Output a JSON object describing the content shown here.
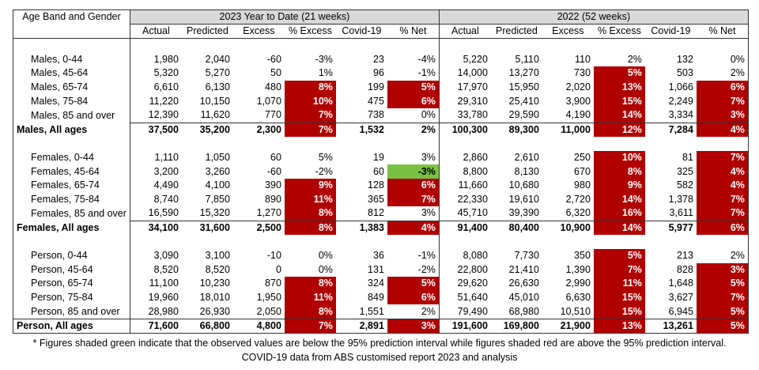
{
  "header": {
    "label_col": "Age Band and Gender",
    "group_2023": "2023 Year to Date (21 weeks)",
    "group_2022": "2022 (52 weeks)",
    "columns": [
      "Actual",
      "Predicted",
      "Excess",
      "% Excess",
      "Covid-19",
      "% Net"
    ]
  },
  "colors": {
    "red": "#b00000",
    "green": "#7ac143"
  },
  "sections": [
    {
      "rows": [
        {
          "label": "Males, 0-44",
          "v23": [
            "1,980",
            "2,040",
            "-60",
            "-3%",
            "23",
            "-4%"
          ],
          "s23": [
            "",
            ""
          ],
          "v22": [
            "5,220",
            "5,110",
            "110",
            "2%",
            "132",
            "0%"
          ],
          "s22": [
            "",
            ""
          ]
        },
        {
          "label": "Males, 45-64",
          "v23": [
            "5,320",
            "5,270",
            "50",
            "1%",
            "96",
            "-1%"
          ],
          "s23": [
            "",
            ""
          ],
          "v22": [
            "14,000",
            "13,270",
            "730",
            "5%",
            "503",
            "2%"
          ],
          "s22": [
            "r",
            ""
          ]
        },
        {
          "label": "Males, 65-74",
          "v23": [
            "6,610",
            "6,130",
            "480",
            "8%",
            "199",
            "5%"
          ],
          "s23": [
            "r",
            "r"
          ],
          "v22": [
            "17,970",
            "15,950",
            "2,020",
            "13%",
            "1,066",
            "6%"
          ],
          "s22": [
            "r",
            "r"
          ]
        },
        {
          "label": "Males, 75-84",
          "v23": [
            "11,220",
            "10,150",
            "1,070",
            "10%",
            "475",
            "6%"
          ],
          "s23": [
            "r",
            "r"
          ],
          "v22": [
            "29,310",
            "25,410",
            "3,900",
            "15%",
            "2,249",
            "7%"
          ],
          "s22": [
            "r",
            "r"
          ]
        },
        {
          "label": "Males, 85 and over",
          "v23": [
            "12,390",
            "11,620",
            "770",
            "7%",
            "738",
            "0%"
          ],
          "s23": [
            "r",
            ""
          ],
          "v22": [
            "33,780",
            "29,590",
            "4,190",
            "14%",
            "3,334",
            "3%"
          ],
          "s22": [
            "r",
            "r"
          ]
        },
        {
          "label": "Males, All ages",
          "total": true,
          "v23": [
            "37,500",
            "35,200",
            "2,300",
            "7%",
            "1,532",
            "2%"
          ],
          "s23": [
            "r",
            ""
          ],
          "v22": [
            "100,300",
            "89,300",
            "11,000",
            "12%",
            "7,284",
            "4%"
          ],
          "s22": [
            "r",
            "r"
          ]
        }
      ]
    },
    {
      "rows": [
        {
          "label": "Females, 0-44",
          "v23": [
            "1,110",
            "1,050",
            "60",
            "5%",
            "19",
            "3%"
          ],
          "s23": [
            "",
            ""
          ],
          "v22": [
            "2,860",
            "2,610",
            "250",
            "10%",
            "81",
            "7%"
          ],
          "s22": [
            "r",
            "r"
          ]
        },
        {
          "label": "Females, 45-64",
          "v23": [
            "3,200",
            "3,260",
            "-60",
            "-2%",
            "60",
            "-3%"
          ],
          "s23": [
            "",
            "g"
          ],
          "v22": [
            "8,800",
            "8,130",
            "670",
            "8%",
            "325",
            "4%"
          ],
          "s22": [
            "r",
            "r"
          ]
        },
        {
          "label": "Females, 65-74",
          "v23": [
            "4,490",
            "4,100",
            "390",
            "9%",
            "128",
            "6%"
          ],
          "s23": [
            "r",
            "r"
          ],
          "v22": [
            "11,660",
            "10,680",
            "980",
            "9%",
            "582",
            "4%"
          ],
          "s22": [
            "r",
            "r"
          ]
        },
        {
          "label": "Females, 75-84",
          "v23": [
            "8,740",
            "7,850",
            "890",
            "11%",
            "365",
            "7%"
          ],
          "s23": [
            "r",
            "r"
          ],
          "v22": [
            "22,330",
            "19,610",
            "2,720",
            "14%",
            "1,378",
            "7%"
          ],
          "s22": [
            "r",
            "r"
          ]
        },
        {
          "label": "Females, 85 and over",
          "v23": [
            "16,590",
            "15,320",
            "1,270",
            "8%",
            "812",
            "3%"
          ],
          "s23": [
            "r",
            ""
          ],
          "v22": [
            "45,710",
            "39,390",
            "6,320",
            "16%",
            "3,611",
            "7%"
          ],
          "s22": [
            "r",
            "r"
          ]
        },
        {
          "label": "Females, All ages",
          "total": true,
          "v23": [
            "34,100",
            "31,600",
            "2,500",
            "8%",
            "1,383",
            "4%"
          ],
          "s23": [
            "r",
            "r"
          ],
          "v22": [
            "91,400",
            "80,400",
            "10,900",
            "14%",
            "5,977",
            "6%"
          ],
          "s22": [
            "r",
            "r"
          ]
        }
      ]
    },
    {
      "rows": [
        {
          "label": "Person, 0-44",
          "v23": [
            "3,090",
            "3,100",
            "-10",
            "0%",
            "36",
            "-1%"
          ],
          "s23": [
            "",
            ""
          ],
          "v22": [
            "8,080",
            "7,730",
            "350",
            "5%",
            "213",
            "2%"
          ],
          "s22": [
            "r",
            ""
          ]
        },
        {
          "label": "Person, 45-64",
          "v23": [
            "8,520",
            "8,520",
            "0",
            "0%",
            "131",
            "-2%"
          ],
          "s23": [
            "",
            ""
          ],
          "v22": [
            "22,800",
            "21,410",
            "1,390",
            "7%",
            "828",
            "3%"
          ],
          "s22": [
            "r",
            "r"
          ]
        },
        {
          "label": "Person, 65-74",
          "v23": [
            "11,100",
            "10,230",
            "870",
            "8%",
            "324",
            "5%"
          ],
          "s23": [
            "r",
            "r"
          ],
          "v22": [
            "29,620",
            "26,630",
            "2,990",
            "11%",
            "1,648",
            "5%"
          ],
          "s22": [
            "r",
            "r"
          ]
        },
        {
          "label": "Person, 75-84",
          "v23": [
            "19,960",
            "18,010",
            "1,950",
            "11%",
            "849",
            "6%"
          ],
          "s23": [
            "r",
            "r"
          ],
          "v22": [
            "51,640",
            "45,010",
            "6,630",
            "15%",
            "3,627",
            "7%"
          ],
          "s22": [
            "r",
            "r"
          ]
        },
        {
          "label": "Person, 85 and over",
          "v23": [
            "28,980",
            "26,930",
            "2,050",
            "8%",
            "1,551",
            "2%"
          ],
          "s23": [
            "r",
            ""
          ],
          "v22": [
            "79,490",
            "68,980",
            "10,510",
            "15%",
            "6,945",
            "5%"
          ],
          "s22": [
            "r",
            "r"
          ]
        },
        {
          "label": "Person, All ages",
          "total": true,
          "final": true,
          "v23": [
            "71,600",
            "66,800",
            "4,800",
            "7%",
            "2,891",
            "3%"
          ],
          "s23": [
            "r",
            "r"
          ],
          "v22": [
            "191,600",
            "169,800",
            "21,900",
            "13%",
            "13,261",
            "5%"
          ],
          "s22": [
            "r",
            "r"
          ]
        }
      ]
    }
  ],
  "footnote": "* Figures shaded green indicate that the observed values are below the 95% prediction interval while figures shaded red are above the 95% prediction interval.",
  "source": "COVID-19 data from ABS customised report 2023 and analysis"
}
